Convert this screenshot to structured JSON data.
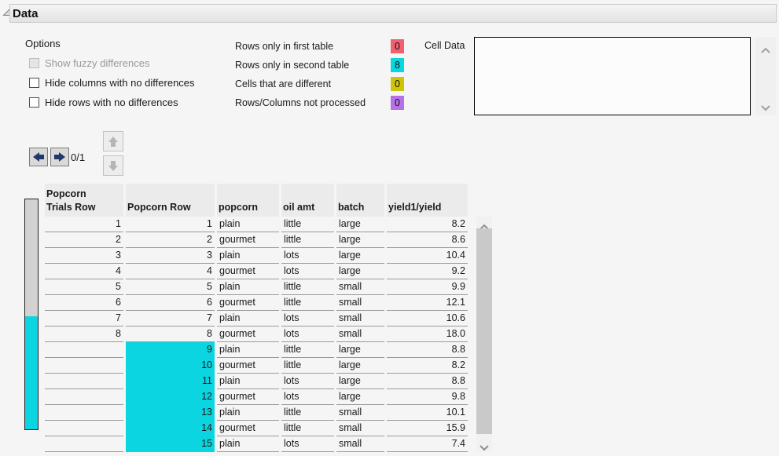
{
  "title": "Data",
  "options": {
    "heading": "Options",
    "checkboxes": [
      {
        "label": "Show fuzzy differences",
        "enabled": false,
        "checked": false
      },
      {
        "label": "Hide columns with no differences",
        "enabled": true,
        "checked": false
      },
      {
        "label": "Hide rows with no differences",
        "enabled": true,
        "checked": false
      }
    ]
  },
  "legend": {
    "items": [
      {
        "label": "Rows only in first table",
        "count": "0",
        "color": "#f25f6e"
      },
      {
        "label": "Rows only in second table",
        "count": "8",
        "color": "#0bd5e0"
      },
      {
        "label": "Cells that are different",
        "count": "0",
        "color": "#cfc407"
      },
      {
        "label": "Rows/Columns not processed",
        "count": "0",
        "color": "#b671e6"
      }
    ]
  },
  "cell_data": {
    "label": "Cell Data",
    "content": ""
  },
  "nav": {
    "counter": "0/1"
  },
  "table": {
    "columns": [
      {
        "key": "trials_row",
        "label": "Popcorn\nTrials Row",
        "cell_align": "right"
      },
      {
        "key": "popcorn_row",
        "label": "Popcorn Row",
        "cell_align": "right"
      },
      {
        "key": "popcorn",
        "label": "popcorn",
        "cell_align": "left"
      },
      {
        "key": "oil_amt",
        "label": "oil amt",
        "cell_align": "left"
      },
      {
        "key": "batch",
        "label": "batch",
        "cell_align": "left"
      },
      {
        "key": "yield",
        "label": "yield1/yield",
        "cell_align": "right"
      }
    ],
    "rows": [
      {
        "trials_row": "1",
        "popcorn_row": "1",
        "popcorn": "plain",
        "oil_amt": "little",
        "batch": "large",
        "yield": "8.2",
        "highlight": false
      },
      {
        "trials_row": "2",
        "popcorn_row": "2",
        "popcorn": "gourmet",
        "oil_amt": "little",
        "batch": "large",
        "yield": "8.6",
        "highlight": false
      },
      {
        "trials_row": "3",
        "popcorn_row": "3",
        "popcorn": "plain",
        "oil_amt": "lots",
        "batch": "large",
        "yield": "10.4",
        "highlight": false
      },
      {
        "trials_row": "4",
        "popcorn_row": "4",
        "popcorn": "gourmet",
        "oil_amt": "lots",
        "batch": "large",
        "yield": "9.2",
        "highlight": false
      },
      {
        "trials_row": "5",
        "popcorn_row": "5",
        "popcorn": "plain",
        "oil_amt": "little",
        "batch": "small",
        "yield": "9.9",
        "highlight": false
      },
      {
        "trials_row": "6",
        "popcorn_row": "6",
        "popcorn": "gourmet",
        "oil_amt": "little",
        "batch": "small",
        "yield": "12.1",
        "highlight": false
      },
      {
        "trials_row": "7",
        "popcorn_row": "7",
        "popcorn": "plain",
        "oil_amt": "lots",
        "batch": "small",
        "yield": "10.6",
        "highlight": false
      },
      {
        "trials_row": "8",
        "popcorn_row": "8",
        "popcorn": "gourmet",
        "oil_amt": "lots",
        "batch": "small",
        "yield": "18.0",
        "highlight": false
      },
      {
        "trials_row": "",
        "popcorn_row": "9",
        "popcorn": "plain",
        "oil_amt": "little",
        "batch": "large",
        "yield": "8.8",
        "highlight": true
      },
      {
        "trials_row": "",
        "popcorn_row": "10",
        "popcorn": "gourmet",
        "oil_amt": "little",
        "batch": "large",
        "yield": "8.2",
        "highlight": true
      },
      {
        "trials_row": "",
        "popcorn_row": "11",
        "popcorn": "plain",
        "oil_amt": "lots",
        "batch": "large",
        "yield": "8.8",
        "highlight": true
      },
      {
        "trials_row": "",
        "popcorn_row": "12",
        "popcorn": "gourmet",
        "oil_amt": "lots",
        "batch": "large",
        "yield": "9.8",
        "highlight": true
      },
      {
        "trials_row": "",
        "popcorn_row": "13",
        "popcorn": "plain",
        "oil_amt": "little",
        "batch": "small",
        "yield": "10.1",
        "highlight": true
      },
      {
        "trials_row": "",
        "popcorn_row": "14",
        "popcorn": "gourmet",
        "oil_amt": "little",
        "batch": "small",
        "yield": "15.9",
        "highlight": true
      },
      {
        "trials_row": "",
        "popcorn_row": "15",
        "popcorn": "plain",
        "oil_amt": "lots",
        "batch": "small",
        "yield": "7.4",
        "highlight": true
      }
    ]
  },
  "colors": {
    "highlight": "#0bd5e0",
    "nav_arrow": "#1e3a6c",
    "disabled_arrow": "#b5b5b5"
  }
}
